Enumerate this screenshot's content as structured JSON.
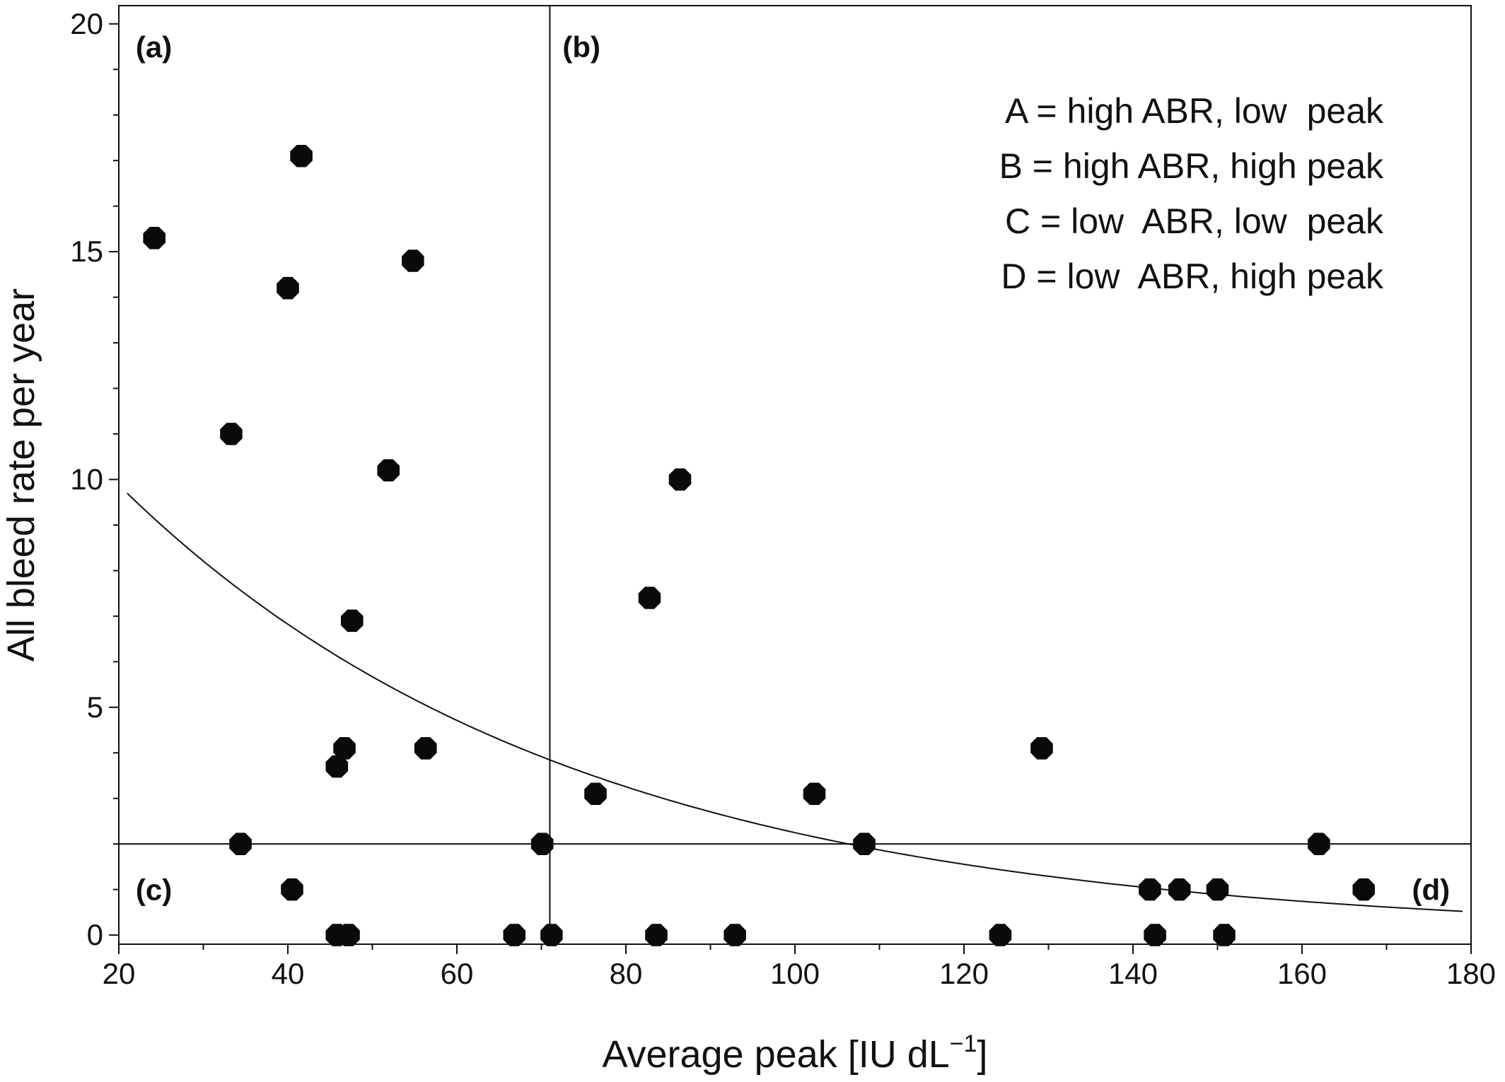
{
  "chart_data": {
    "type": "scatter",
    "xlabel": "Average peak [IU dL",
    "xlabel_sup": "−1",
    "xlabel_end": "]",
    "ylabel": "All bleed rate per year",
    "xlim": [
      20,
      180
    ],
    "ylim": [
      -0.2,
      20.4
    ],
    "x_ticks": [
      20,
      40,
      60,
      80,
      100,
      120,
      140,
      160,
      180
    ],
    "y_ticks": [
      0,
      5,
      10,
      15,
      20
    ],
    "grid": false,
    "points": [
      {
        "x": 24.2,
        "y": 15.3
      },
      {
        "x": 41.6,
        "y": 17.1
      },
      {
        "x": 40.0,
        "y": 14.2
      },
      {
        "x": 54.8,
        "y": 14.8
      },
      {
        "x": 33.3,
        "y": 11.0
      },
      {
        "x": 51.9,
        "y": 10.2
      },
      {
        "x": 47.6,
        "y": 6.9
      },
      {
        "x": 46.7,
        "y": 4.1
      },
      {
        "x": 45.8,
        "y": 3.7
      },
      {
        "x": 56.3,
        "y": 4.1
      },
      {
        "x": 34.4,
        "y": 2.0
      },
      {
        "x": 40.5,
        "y": 1.0
      },
      {
        "x": 45.8,
        "y": 0.0
      },
      {
        "x": 47.2,
        "y": 0.0
      },
      {
        "x": 66.8,
        "y": 0.0
      },
      {
        "x": 70.1,
        "y": 2.0
      },
      {
        "x": 71.2,
        "y": 0.0
      },
      {
        "x": 76.4,
        "y": 3.1
      },
      {
        "x": 82.8,
        "y": 7.4
      },
      {
        "x": 86.4,
        "y": 10.0
      },
      {
        "x": 83.6,
        "y": 0.0
      },
      {
        "x": 92.9,
        "y": 0.0
      },
      {
        "x": 102.3,
        "y": 3.1
      },
      {
        "x": 108.2,
        "y": 2.0
      },
      {
        "x": 124.3,
        "y": 0.0
      },
      {
        "x": 129.2,
        "y": 4.1
      },
      {
        "x": 142.0,
        "y": 1.0
      },
      {
        "x": 142.6,
        "y": 0.0
      },
      {
        "x": 145.5,
        "y": 1.0
      },
      {
        "x": 150.0,
        "y": 1.0
      },
      {
        "x": 150.8,
        "y": 0.0
      },
      {
        "x": 162.0,
        "y": 2.0
      },
      {
        "x": 167.3,
        "y": 1.0
      }
    ],
    "fit_curve": {
      "a": 14.3,
      "b": 0.0185,
      "x_range": [
        21,
        179
      ]
    },
    "threshold_x": 71,
    "threshold_y": 2,
    "quadrant_labels": [
      {
        "text": "(a)",
        "x": 22,
        "y": 19.5,
        "anchor": "start"
      },
      {
        "text": "(b)",
        "x": 72.5,
        "y": 19.5,
        "anchor": "start"
      },
      {
        "text": "(c)",
        "x": 22,
        "y": 1.0,
        "anchor": "start"
      },
      {
        "text": "(d)",
        "x": 177.5,
        "y": 1.0,
        "anchor": "end"
      }
    ],
    "legend_position": "top-right",
    "legend_lines": [
      "A = high ABR, low  peak",
      "B = high ABR, high peak",
      "C = low  ABR, low  peak",
      "D = low  ABR, high peak"
    ]
  }
}
